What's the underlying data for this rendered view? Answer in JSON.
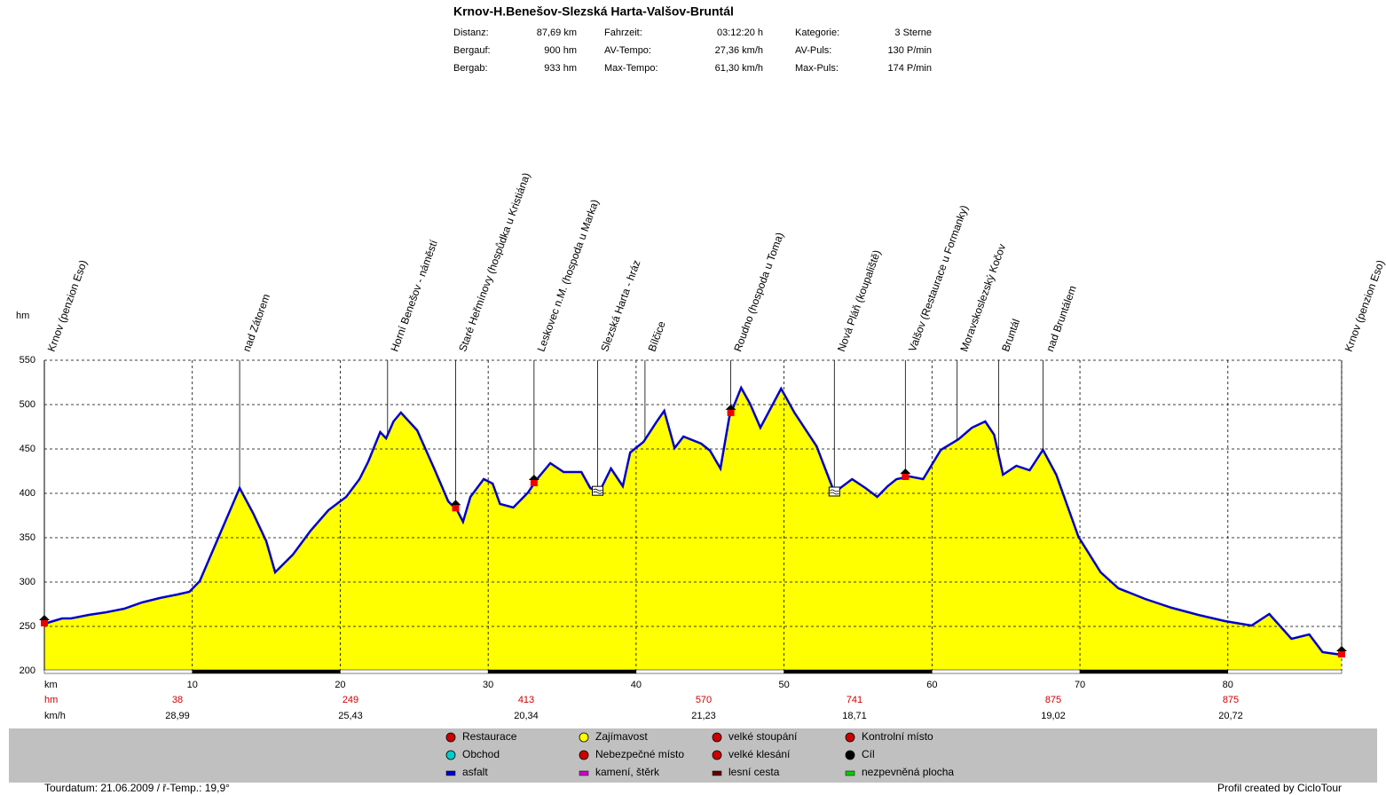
{
  "header": {
    "title": "Krnov-H.Benešov-Slezská Harta-Valšov-Bruntál",
    "stats": [
      [
        [
          "Distanz:",
          "87,69 km"
        ],
        [
          "Fahrzeit:",
          "03:12:20 h"
        ],
        [
          "Kategorie:",
          "3 Sterne"
        ]
      ],
      [
        [
          "Bergauf:",
          "900 hm"
        ],
        [
          "AV-Tempo:",
          "27,36 km/h"
        ],
        [
          "AV-Puls:",
          "130 P/min"
        ]
      ],
      [
        [
          "Bergab:",
          "933 hm"
        ],
        [
          "Max-Tempo:",
          "61,30 km/h"
        ],
        [
          "Max-Puls:",
          "174 P/min"
        ]
      ]
    ]
  },
  "chart_data": {
    "type": "line",
    "ylabel": "hm",
    "xlabel": "km",
    "color": "#0000cc",
    "fill": "#ffff00",
    "grid": true,
    "xlim": [
      0,
      87.69
    ],
    "ylim": [
      200,
      550
    ],
    "xticks": [
      10,
      20,
      30,
      40,
      50,
      60,
      70,
      80
    ],
    "yticks": [
      200,
      250,
      300,
      350,
      400,
      450,
      500,
      550
    ],
    "x": [
      0,
      0.6,
      1.2,
      1.8,
      3,
      4.2,
      5.4,
      6.6,
      7.8,
      9,
      9.8,
      10.5,
      11.4,
      12.3,
      13.2,
      14.1,
      15,
      15.6,
      16.8,
      18,
      19.2,
      20.4,
      21.3,
      21.9,
      22.7,
      23.1,
      23.6,
      24.1,
      25.2,
      26.4,
      27.3,
      27.9,
      28.3,
      28.8,
      29.7,
      30.3,
      30.8,
      31.7,
      32.7,
      33.3,
      34.2,
      35.1,
      36.3,
      36.9,
      37.5,
      38.3,
      39.1,
      39.6,
      40.5,
      41.4,
      41.9,
      42.6,
      43.2,
      44.4,
      45,
      45.7,
      46.3,
      47.1,
      47.7,
      48.4,
      49.8,
      50.7,
      52.2,
      53.4,
      54.6,
      55.5,
      56.3,
      57,
      57.6,
      58.5,
      59.4,
      60.6,
      61.8,
      62.7,
      63.6,
      64.2,
      64.8,
      65.7,
      66.6,
      67.5,
      68.4,
      69.9,
      71.4,
      72.6,
      74.4,
      76.2,
      78,
      79.8,
      81.6,
      82.8,
      84.3,
      85.5,
      86.4,
      87.69
    ],
    "values": [
      253,
      256,
      259,
      259,
      263,
      266,
      270,
      277,
      282,
      286,
      289,
      301,
      336,
      371,
      406,
      378,
      346,
      311,
      331,
      358,
      381,
      396,
      416,
      436,
      469,
      462,
      481,
      491,
      471,
      426,
      391,
      381,
      368,
      396,
      416,
      411,
      388,
      384,
      401,
      416,
      434,
      424,
      424,
      406,
      401,
      428,
      408,
      446,
      458,
      481,
      493,
      451,
      464,
      456,
      448,
      428,
      486,
      519,
      501,
      474,
      518,
      491,
      453,
      401,
      416,
      406,
      396,
      408,
      416,
      419,
      416,
      449,
      461,
      474,
      481,
      466,
      421,
      431,
      426,
      449,
      421,
      351,
      311,
      293,
      281,
      271,
      263,
      256,
      251,
      264,
      236,
      241,
      221,
      218
    ],
    "waypoints": [
      {
        "name": "Krnov (penzion Eso)",
        "km": 0,
        "icon": "restaurant"
      },
      {
        "name": "nad Zátorem",
        "km": 13.2
      },
      {
        "name": "Horní Benešov - náměstí",
        "km": 23.2
      },
      {
        "name": "Staré Heřmínovy (hospůdka u Kristiána)",
        "km": 27.8,
        "icon": "restaurant"
      },
      {
        "name": "Leskovec n.M. (hospoda u Marka)",
        "km": 33.1,
        "icon": "restaurant"
      },
      {
        "name": "Slezská Harta - hráz",
        "km": 37.4,
        "icon": "water"
      },
      {
        "name": "Bílčice",
        "km": 40.6
      },
      {
        "name": "Roudno (hospoda u Toma)",
        "km": 46.4,
        "icon": "restaurant"
      },
      {
        "name": "Nová Pláň (koupaliště)",
        "km": 53.4,
        "icon": "water"
      },
      {
        "name": "Valšov (Restaurace u Formanky)",
        "km": 58.2,
        "icon": "restaurant"
      },
      {
        "name": "Moravskoslezský Kočov",
        "km": 61.7
      },
      {
        "name": "Bruntál",
        "km": 64.5
      },
      {
        "name": "nad Bruntálem",
        "km": 67.5
      },
      {
        "name": "Krnov (penzion Eso)",
        "km": 87.69,
        "icon": "restaurant"
      }
    ],
    "segment_label": "hm",
    "segment_climb": [
      38,
      249,
      413,
      570,
      741,
      875,
      875
    ],
    "speed_label": "km/h",
    "segment_speed": [
      {
        "value": 28.99,
        "label": "28,99"
      },
      {
        "value": 25.43,
        "label": "25,43"
      },
      {
        "value": 20.34,
        "label": "20,34"
      },
      {
        "value": 21.23,
        "label": "21,23"
      },
      {
        "value": 18.71,
        "label": "18,71"
      },
      {
        "value": 19.02,
        "label": "19,02"
      },
      {
        "value": 20.72,
        "label": "20,72"
      }
    ]
  },
  "legend": [
    {
      "label": "Restaurace",
      "color": "#cc0000"
    },
    {
      "label": "Zajímavost",
      "color": "#ffff00"
    },
    {
      "label": "velké stoupání",
      "color": "#cc0000"
    },
    {
      "label": "Kontrolní místo",
      "color": "#cc0000"
    },
    {
      "label": "Obchod",
      "color": "#00cccc"
    },
    {
      "label": "Nebezpečné místo",
      "color": "#cc0000"
    },
    {
      "label": "velké klesání",
      "color": "#cc0000"
    },
    {
      "label": "Cíl",
      "color": "#000000"
    },
    {
      "label": "asfalt",
      "color": "#0000cc"
    },
    {
      "label": "kamení, štěrk",
      "color": "#cc00cc"
    },
    {
      "label": "lesní cesta",
      "color": "#660000"
    },
    {
      "label": "nezpevněná plocha",
      "color": "#00cc00"
    }
  ],
  "footer": {
    "left": "Tourdatum: 21.06.2009  /  ř-Temp.: 19,9°",
    "right": "Profil created by CicloTour"
  }
}
